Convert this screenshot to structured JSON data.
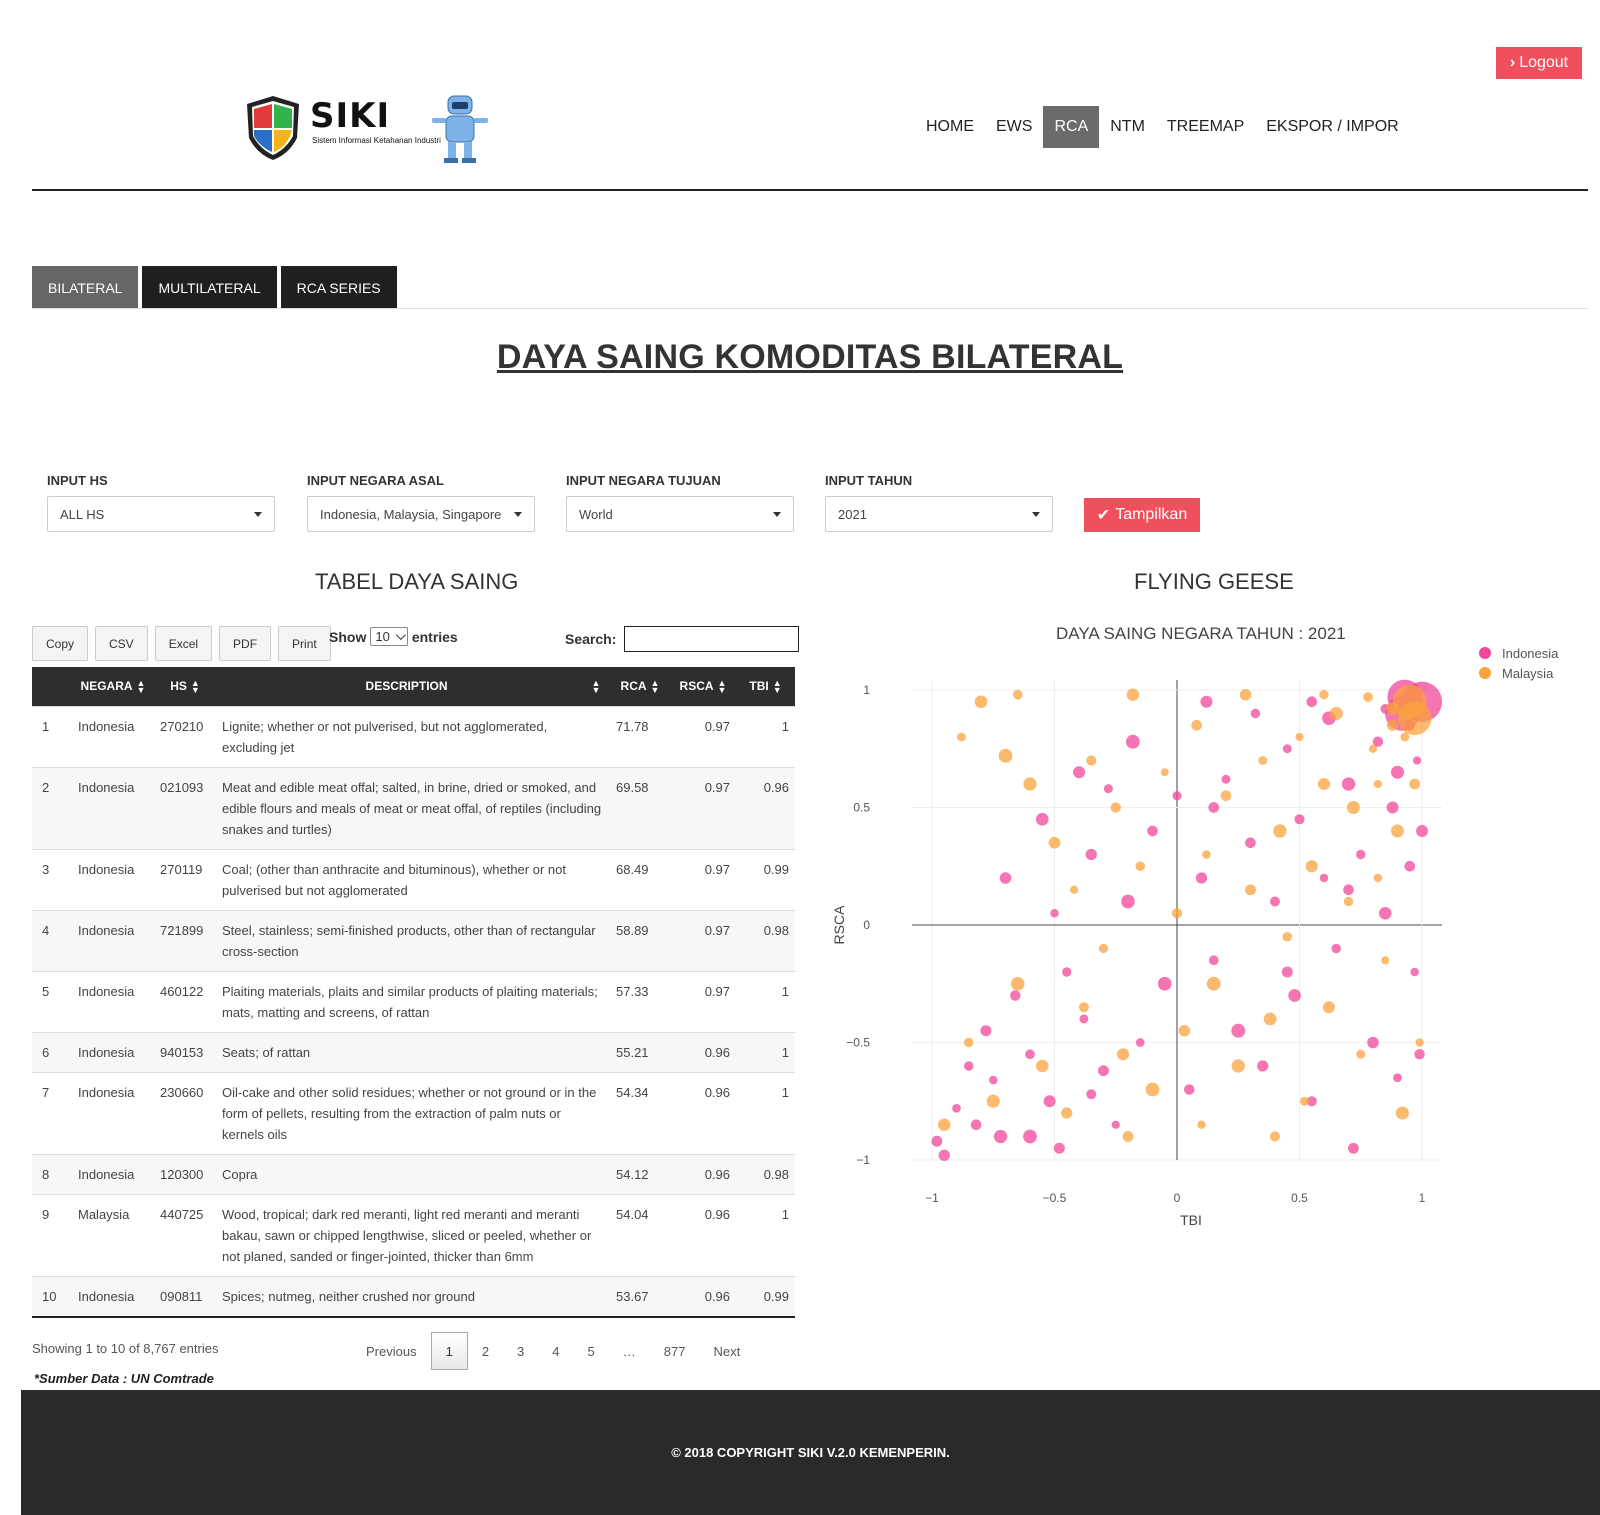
{
  "header": {
    "logout_label": "Logout",
    "brand": "SIKI",
    "brand_subtitle": "Sistem Informasi Ketahanan Industri",
    "nav": [
      {
        "label": "HOME",
        "active": false
      },
      {
        "label": "EWS",
        "active": false
      },
      {
        "label": "RCA",
        "active": true
      },
      {
        "label": "NTM",
        "active": false
      },
      {
        "label": "TREEMAP",
        "active": false
      },
      {
        "label": "EKSPOR / IMPOR",
        "active": false
      }
    ]
  },
  "tabs": [
    {
      "label": "BILATERAL",
      "active": true
    },
    {
      "label": "MULTILATERAL",
      "active": false
    },
    {
      "label": "RCA SERIES",
      "active": false
    }
  ],
  "page_title": "DAYA SAING KOMODITAS BILATERAL",
  "filters": {
    "hs": {
      "label": "INPUT HS",
      "value": "ALL HS"
    },
    "asal": {
      "label": "INPUT NEGARA ASAL",
      "value": "Indonesia, Malaysia, Singapore"
    },
    "tujuan": {
      "label": "INPUT NEGARA TUJUAN",
      "value": "World"
    },
    "tahun": {
      "label": "INPUT TAHUN",
      "value": "2021"
    },
    "submit_label": "Tampilkan"
  },
  "table_section_title": "TABEL DAYA SAING",
  "chart_section_title": "FLYING GEESE",
  "table": {
    "buttons": [
      "Copy",
      "CSV",
      "Excel",
      "PDF",
      "Print"
    ],
    "show_label": "Show",
    "entries_label": "entries",
    "length_value": "10",
    "search_label": "Search:",
    "columns": [
      "",
      "NEGARA",
      "HS",
      "DESCRIPTION",
      "RCA",
      "RSCA",
      "TBI"
    ],
    "rows": [
      [
        "1",
        "Indonesia",
        "270210",
        "Lignite; whether or not pulverised, but not agglomerated, excluding jet",
        "71.78",
        "0.97",
        "1"
      ],
      [
        "2",
        "Indonesia",
        "021093",
        "Meat and edible meat offal; salted, in brine, dried or smoked, and edible flours and meals of meat or meat offal, of reptiles (including snakes and turtles)",
        "69.58",
        "0.97",
        "0.96"
      ],
      [
        "3",
        "Indonesia",
        "270119",
        "Coal; (other than anthracite and bituminous), whether or not pulverised but not agglomerated",
        "68.49",
        "0.97",
        "0.99"
      ],
      [
        "4",
        "Indonesia",
        "721899",
        "Steel, stainless; semi-finished products, other than of rectangular cross-section",
        "58.89",
        "0.97",
        "0.98"
      ],
      [
        "5",
        "Indonesia",
        "460122",
        "Plaiting materials, plaits and similar products of plaiting materials; mats, matting and screens, of rattan",
        "57.33",
        "0.97",
        "1"
      ],
      [
        "6",
        "Indonesia",
        "940153",
        "Seats; of rattan",
        "55.21",
        "0.96",
        "1"
      ],
      [
        "7",
        "Indonesia",
        "230660",
        "Oil-cake and other solid residues; whether or not ground or in the form of pellets, resulting from the extraction of palm nuts or kernels oils",
        "54.34",
        "0.96",
        "1"
      ],
      [
        "8",
        "Indonesia",
        "120300",
        "Copra",
        "54.12",
        "0.96",
        "0.98"
      ],
      [
        "9",
        "Malaysia",
        "440725",
        "Wood, tropical; dark red meranti, light red meranti and meranti bakau, sawn or chipped lengthwise, sliced or peeled, whether or not planed, sanded or finger-jointed, thicker than 6mm",
        "54.04",
        "0.96",
        "1"
      ],
      [
        "10",
        "Indonesia",
        "090811",
        "Spices; nutmeg, neither crushed nor ground",
        "53.67",
        "0.96",
        "0.99"
      ]
    ],
    "info": "Showing 1 to 10 of 8,767 entries",
    "pagination": [
      "Previous",
      "1",
      "2",
      "3",
      "4",
      "5",
      "…",
      "877",
      "Next"
    ],
    "current_page": "1",
    "source_note": "*Sumber Data : UN Comtrade"
  },
  "chart_data": {
    "type": "scatter",
    "title": "DAYA SAING NEGARA TAHUN : 2021",
    "xlabel": "TBI",
    "ylabel": "RSCA",
    "xlim": [
      -1,
      1
    ],
    "ylim": [
      -1,
      1
    ],
    "x_ticks": [
      "−1",
      "−0.5",
      "0",
      "0.5",
      "1"
    ],
    "y_ticks": [
      "1",
      "0.5",
      "0",
      "−0.5",
      "−1"
    ],
    "legend_position": "top-right",
    "series": [
      {
        "name": "Indonesia",
        "color": "#f2479a",
        "points": [
          [
            -0.98,
            -0.92
          ],
          [
            -0.95,
            -0.98
          ],
          [
            -0.9,
            -0.78
          ],
          [
            -0.85,
            -0.6
          ],
          [
            -0.82,
            -0.85
          ],
          [
            -0.78,
            -0.45
          ],
          [
            -0.75,
            -0.66
          ],
          [
            -0.72,
            -0.9
          ],
          [
            -0.7,
            0.2
          ],
          [
            -0.66,
            -0.3
          ],
          [
            -0.6,
            -0.55
          ],
          [
            -0.55,
            0.45
          ],
          [
            -0.52,
            -0.75
          ],
          [
            -0.5,
            0.05
          ],
          [
            -0.48,
            -0.95
          ],
          [
            -0.45,
            -0.2
          ],
          [
            -0.4,
            0.65
          ],
          [
            -0.38,
            -0.4
          ],
          [
            -0.35,
            0.3
          ],
          [
            -0.3,
            -0.62
          ],
          [
            -0.28,
            0.58
          ],
          [
            -0.25,
            -0.85
          ],
          [
            -0.2,
            0.1
          ],
          [
            -0.18,
            0.78
          ],
          [
            -0.15,
            -0.5
          ],
          [
            -0.1,
            0.4
          ],
          [
            -0.05,
            -0.25
          ],
          [
            0,
            0.55
          ],
          [
            0.05,
            -0.7
          ],
          [
            0.1,
            0.2
          ],
          [
            0.12,
            0.95
          ],
          [
            0.15,
            -0.15
          ],
          [
            0.2,
            0.62
          ],
          [
            0.25,
            -0.45
          ],
          [
            0.3,
            0.35
          ],
          [
            0.32,
            0.9
          ],
          [
            0.35,
            -0.6
          ],
          [
            0.4,
            0.1
          ],
          [
            0.45,
            0.75
          ],
          [
            0.48,
            -0.3
          ],
          [
            0.5,
            0.45
          ],
          [
            0.55,
            -0.75
          ],
          [
            0.6,
            0.2
          ],
          [
            0.62,
            0.88
          ],
          [
            0.65,
            -0.1
          ],
          [
            0.7,
            0.6
          ],
          [
            0.72,
            -0.95
          ],
          [
            0.75,
            0.3
          ],
          [
            0.8,
            -0.5
          ],
          [
            0.82,
            0.78
          ],
          [
            0.85,
            0.05
          ],
          [
            0.88,
            0.5
          ],
          [
            0.9,
            -0.65
          ],
          [
            0.92,
            0.9
          ],
          [
            0.95,
            0.25
          ],
          [
            0.97,
            -0.2
          ],
          [
            0.98,
            0.7
          ],
          [
            0.99,
            -0.55
          ],
          [
            1.0,
            0.95
          ],
          [
            1.0,
            0.4
          ],
          [
            -0.6,
            -0.9
          ],
          [
            -0.35,
            -0.72
          ],
          [
            0.15,
            0.5
          ],
          [
            0.45,
            -0.2
          ],
          [
            0.7,
            0.15
          ],
          [
            0.9,
            0.65
          ],
          [
            0.95,
            0.85
          ],
          [
            0.55,
            0.95
          ],
          [
            0.85,
            0.92
          ],
          [
            0.93,
            0.97
          ]
        ]
      },
      {
        "name": "Malaysia",
        "color": "#f9a33c",
        "points": [
          [
            -0.95,
            -0.85
          ],
          [
            -0.88,
            0.8
          ],
          [
            -0.85,
            -0.5
          ],
          [
            -0.8,
            0.95
          ],
          [
            -0.75,
            -0.75
          ],
          [
            -0.7,
            0.72
          ],
          [
            -0.65,
            -0.25
          ],
          [
            -0.6,
            0.6
          ],
          [
            -0.55,
            -0.6
          ],
          [
            -0.5,
            0.35
          ],
          [
            -0.45,
            -0.8
          ],
          [
            -0.42,
            0.15
          ],
          [
            -0.38,
            -0.35
          ],
          [
            -0.35,
            0.7
          ],
          [
            -0.3,
            -0.1
          ],
          [
            -0.25,
            0.5
          ],
          [
            -0.22,
            -0.55
          ],
          [
            -0.18,
            0.98
          ],
          [
            -0.15,
            0.25
          ],
          [
            -0.1,
            -0.7
          ],
          [
            -0.05,
            0.65
          ],
          [
            0,
            0.05
          ],
          [
            0.03,
            -0.45
          ],
          [
            0.08,
            0.85
          ],
          [
            0.12,
            0.3
          ],
          [
            0.15,
            -0.25
          ],
          [
            0.2,
            0.55
          ],
          [
            0.25,
            -0.6
          ],
          [
            0.28,
            0.98
          ],
          [
            0.3,
            0.15
          ],
          [
            0.35,
            0.7
          ],
          [
            0.38,
            -0.4
          ],
          [
            0.42,
            0.4
          ],
          [
            0.45,
            -0.05
          ],
          [
            0.5,
            0.8
          ],
          [
            0.52,
            -0.75
          ],
          [
            0.55,
            0.25
          ],
          [
            0.6,
            0.6
          ],
          [
            0.62,
            -0.35
          ],
          [
            0.65,
            0.9
          ],
          [
            0.7,
            0.1
          ],
          [
            0.72,
            0.5
          ],
          [
            0.75,
            -0.55
          ],
          [
            0.8,
            0.75
          ],
          [
            0.82,
            0.2
          ],
          [
            0.85,
            -0.15
          ],
          [
            0.88,
            0.85
          ],
          [
            0.9,
            0.4
          ],
          [
            0.92,
            -0.8
          ],
          [
            0.95,
            0.95
          ],
          [
            0.97,
            0.6
          ],
          [
            0.99,
            -0.5
          ],
          [
            -0.65,
            0.98
          ],
          [
            -0.2,
            -0.9
          ],
          [
            0.1,
            -0.85
          ],
          [
            0.4,
            -0.9
          ],
          [
            0.6,
            0.98
          ],
          [
            0.78,
            0.97
          ],
          [
            0.88,
            0.92
          ],
          [
            0.97,
            0.88
          ],
          [
            0.93,
            0.8
          ],
          [
            0.82,
            0.6
          ]
        ]
      }
    ]
  },
  "footer": "© 2018 COPYRIGHT SIKI V.2.0 KEMENPERIN."
}
